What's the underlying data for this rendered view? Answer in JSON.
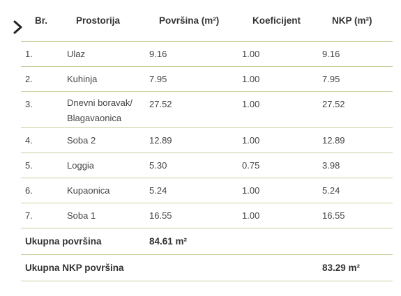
{
  "table": {
    "headers": {
      "br": "Br.",
      "prostorija": "Prostorija",
      "povrsina": "Površina (m²)",
      "koeficijent": "Koeficijent",
      "nkp": "NKP (m²)"
    },
    "rows": [
      {
        "br": "1.",
        "name": "Ulaz",
        "povrsina": "9.16",
        "koef": "1.00",
        "nkp": "9.16"
      },
      {
        "br": "2.",
        "name": "Kuhinja",
        "povrsina": "7.95",
        "koef": "1.00",
        "nkp": "7.95"
      },
      {
        "br": "3.",
        "name": "Dnevni boravak/ Blagavaonica",
        "povrsina": "27.52",
        "koef": "1.00",
        "nkp": "27.52"
      },
      {
        "br": "4.",
        "name": "Soba 2",
        "povrsina": "12.89",
        "koef": "1.00",
        "nkp": "12.89"
      },
      {
        "br": "5.",
        "name": "Loggia",
        "povrsina": "5.30",
        "koef": "0.75",
        "nkp": "3.98"
      },
      {
        "br": "6.",
        "name": "Kupaonica",
        "povrsina": "5.24",
        "koef": "1.00",
        "nkp": "5.24"
      },
      {
        "br": "7.",
        "name": "Soba 1",
        "povrsina": "16.55",
        "koef": "1.00",
        "nkp": "16.55"
      }
    ],
    "totals": {
      "ukupna_label": "Ukupna površina",
      "ukupna_value": "84.61 m²",
      "nkp_label": "Ukupna NKP površina",
      "nkp_value": "83.29 m²"
    }
  },
  "nav": {
    "arrow_icon": "chevron-right-icon"
  },
  "colors": {
    "divider": "#c8cf9c",
    "text": "#3a3a3a"
  }
}
